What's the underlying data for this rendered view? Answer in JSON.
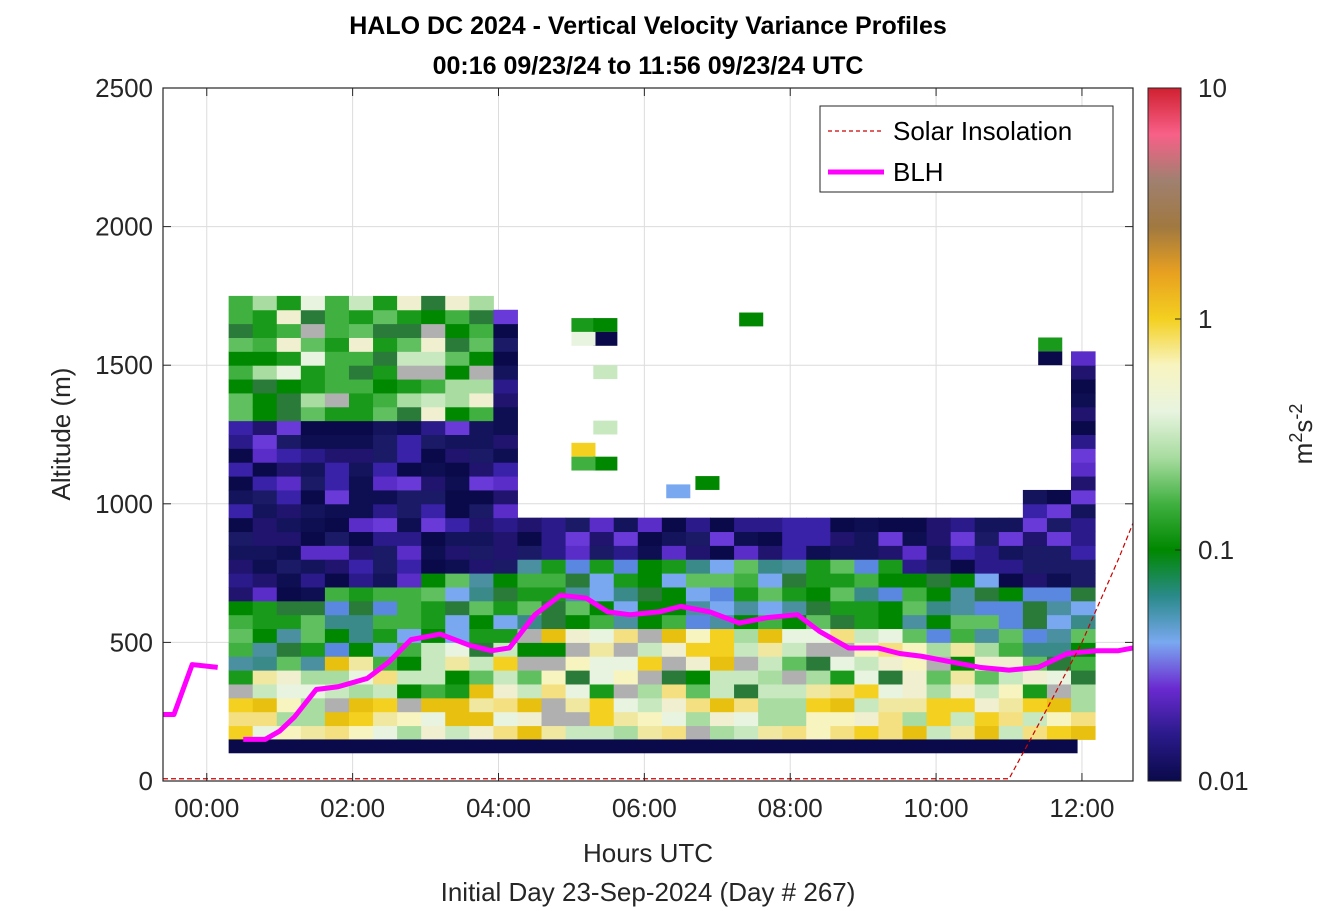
{
  "chart_data": {
    "type": "heatmap",
    "title": "HALO DC 2024 - Vertical Velocity Variance Profiles",
    "subtitle": "00:16 09/23/24 to 11:56 09/23/24  UTC",
    "xlabel": "Hours UTC",
    "xlabel2": "Initial Day 23-Sep-2024 (Day # 267)",
    "ylabel": "Altitude (m)",
    "xlim": [
      -0.6,
      12.7
    ],
    "ylim": [
      0,
      2500
    ],
    "x_ticks": [
      0,
      2,
      4,
      6,
      8,
      10,
      12
    ],
    "x_tick_labels": [
      "00:00",
      "02:00",
      "04:00",
      "06:00",
      "08:00",
      "10:00",
      "12:00"
    ],
    "y_ticks": [
      0,
      500,
      1000,
      1500,
      2000,
      2500
    ],
    "y_tick_labels": [
      "0",
      "500",
      "1000",
      "1500",
      "2000",
      "2500"
    ],
    "grid": true,
    "legend": {
      "placement": "top-right",
      "entries": [
        "Solar Insolation",
        "BLH"
      ]
    },
    "colorbar": {
      "scale": "log",
      "min": 0.01,
      "max": 10,
      "ticks": [
        0.01,
        0.1,
        1,
        10
      ],
      "tick_labels": [
        "0.01",
        "0.1",
        "1",
        "10"
      ],
      "label": "m²s⁻²",
      "colors": [
        "#0a0a4a",
        "#2a1a8a",
        "#6a2ad0",
        "#7aa8f0",
        "#2a8a8a",
        "#008800",
        "#40b040",
        "#a8dca0",
        "#e8f4e0",
        "#f8f4c0",
        "#f4d020",
        "#e8a020",
        "#a07840",
        "#a08070",
        "#f86088",
        "#d02030"
      ]
    },
    "series": [
      {
        "name": "BLH",
        "color": "#ff00ff",
        "x": [
          -0.6,
          -0.45,
          -0.2,
          0.15,
          0.5,
          0.8,
          1.0,
          1.2,
          1.5,
          1.8,
          2.2,
          2.5,
          2.8,
          3.2,
          3.6,
          3.9,
          4.15,
          4.5,
          4.85,
          5.2,
          5.5,
          5.8,
          6.2,
          6.5,
          6.9,
          7.3,
          7.7,
          8.1,
          8.4,
          8.8,
          9.2,
          9.5,
          9.8,
          10.2,
          10.6,
          11.0,
          11.4,
          11.8,
          12.2,
          12.5,
          12.7
        ],
        "y": [
          240,
          240,
          420,
          410,
          150,
          150,
          180,
          230,
          330,
          340,
          370,
          430,
          510,
          530,
          490,
          470,
          480,
          600,
          670,
          660,
          610,
          600,
          610,
          630,
          610,
          570,
          590,
          600,
          540,
          480,
          480,
          460,
          450,
          430,
          410,
          400,
          410,
          460,
          470,
          470,
          480
        ]
      },
      {
        "name": "Solar Insolation",
        "color": "#cc0000",
        "x": [
          -0.6,
          11.0,
          11.5,
          12.0,
          12.5,
          12.7
        ],
        "y": [
          8,
          8,
          250,
          500,
          800,
          930
        ]
      }
    ],
    "heatmap_bounds": {
      "x": [
        0.3,
        11.94
      ],
      "y": [
        100,
        1770
      ],
      "cell_width_h": 0.33,
      "cell_height_m": 50
    }
  }
}
